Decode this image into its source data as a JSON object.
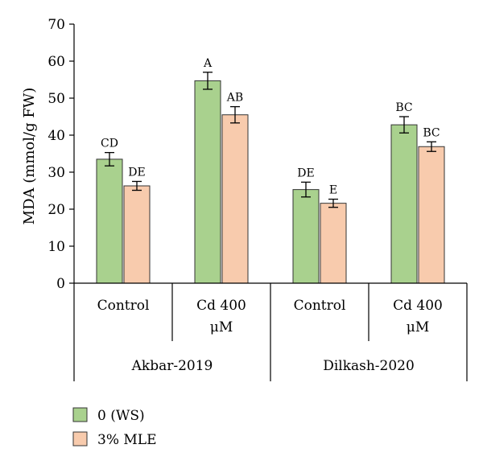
{
  "chart_data": {
    "type": "bar",
    "ylabel": "MDA (mmol/g FW)",
    "ylim": [
      0,
      70
    ],
    "yticks": [
      0,
      10,
      20,
      30,
      40,
      50,
      60,
      70
    ],
    "grid": false,
    "legend_placement": "bottom-left",
    "groups": [
      {
        "label": "Akbar-2019",
        "categories": [
          "Control",
          "Cd 400 μM"
        ]
      },
      {
        "label": "Dilkash-2020",
        "categories": [
          "Control",
          "Cd 400 μM"
        ]
      }
    ],
    "categories": [
      "Control",
      "Cd 400 μM",
      "Control",
      "Cd 400 μM"
    ],
    "series": [
      {
        "name": "0 (WS)",
        "color": "#a9d18e",
        "values": [
          33.5,
          54.7,
          25.3,
          42.8
        ],
        "errors": [
          1.8,
          2.3,
          2.0,
          2.2
        ],
        "labels": [
          "CD",
          "A",
          "DE",
          "BC"
        ]
      },
      {
        "name": "3% MLE",
        "color": "#f8cbad",
        "values": [
          26.3,
          45.5,
          21.6,
          36.9
        ],
        "errors": [
          1.2,
          2.2,
          1.1,
          1.3
        ],
        "labels": [
          "DE",
          "AB",
          "E",
          "BC"
        ]
      }
    ]
  }
}
